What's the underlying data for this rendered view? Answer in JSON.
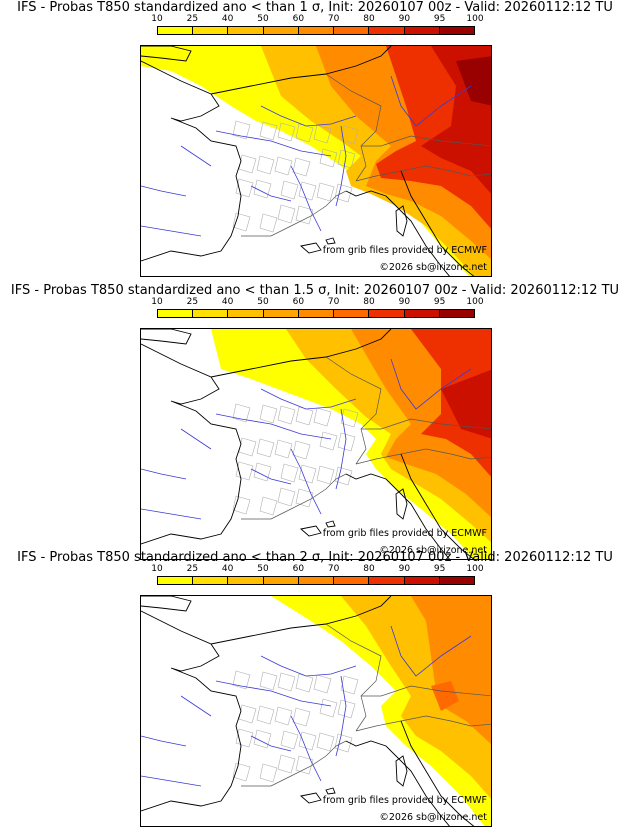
{
  "panels": [
    {
      "title": "IFS - Probas T850  standardized ano < than 1 σ, Init: 20260107 00z - Valid: 20260112:12 TU",
      "level": 3
    },
    {
      "title": "IFS - Probas T850  standardized ano < than 1.5 σ, Init: 20260107 00z - Valid: 20260112:12 TU",
      "level": 2
    },
    {
      "title": "IFS - Probas T850  standardized ano < than 2 σ, Init: 20260107 00z - Valid: 20260112:12 TU",
      "level": 1
    }
  ],
  "colorbar": {
    "ticks": [
      "10",
      "25",
      "40",
      "50",
      "60",
      "70",
      "80",
      "90",
      "95",
      "100"
    ],
    "colors": [
      "#ffff00",
      "#ffe000",
      "#ffc000",
      "#ffa500",
      "#ff8c00",
      "#ff6a00",
      "#ee3000",
      "#cc1000",
      "#990000",
      "#660000"
    ]
  },
  "credits": {
    "source": "from grib files provided by ECMWF",
    "copyright": "©2026 sb@irizone.net"
  }
}
